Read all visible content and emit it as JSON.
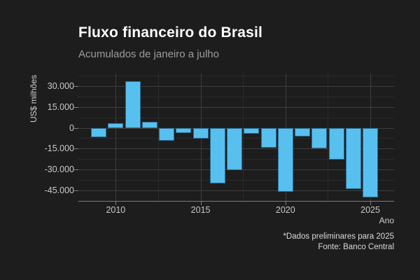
{
  "chart_data": {
    "type": "bar",
    "title": "Fluxo financeiro do Brasil",
    "subtitle": "Acumulados de janeiro a julho",
    "xlabel": "Ano",
    "ylabel": "US$ milhões",
    "x": [
      2009,
      2010,
      2011,
      2012,
      2013,
      2014,
      2015,
      2016,
      2017,
      2018,
      2019,
      2020,
      2021,
      2022,
      2023,
      2024,
      2025
    ],
    "values": [
      -7000,
      3500,
      33500,
      4500,
      -9500,
      -3500,
      -8000,
      -40000,
      -30500,
      -4000,
      -14500,
      -46000,
      -6500,
      -15000,
      -23000,
      -44000,
      -50000
    ],
    "xlim": [
      2007.8,
      2026.4
    ],
    "ylim": [
      -52500,
      39000
    ],
    "x_major_ticks": [
      2010,
      2015,
      2020,
      2025
    ],
    "x_tick_labels": [
      "2010",
      "2015",
      "2020",
      "2025"
    ],
    "x_minor_ticks": [
      2012.5,
      2017.5,
      2022.5
    ],
    "y_major_ticks": [
      30000,
      15000,
      0,
      -15000,
      -30000,
      -45000
    ],
    "y_tick_labels": [
      "30.000",
      "15.000",
      "0",
      "-15.000",
      "-30.000",
      "-45.000"
    ],
    "y_minor_ticks": [
      37500,
      22500,
      7500,
      -7500,
      -22500,
      -37500
    ],
    "grid": true,
    "legend_position": "none",
    "bar_color": "#57c0ef",
    "bar_border_color": "#2f6e92",
    "background_color": "#1d1d1d"
  },
  "caption": {
    "line1": "*Dados preliminares para 2025",
    "line2": "Fonte: Banco Central"
  }
}
